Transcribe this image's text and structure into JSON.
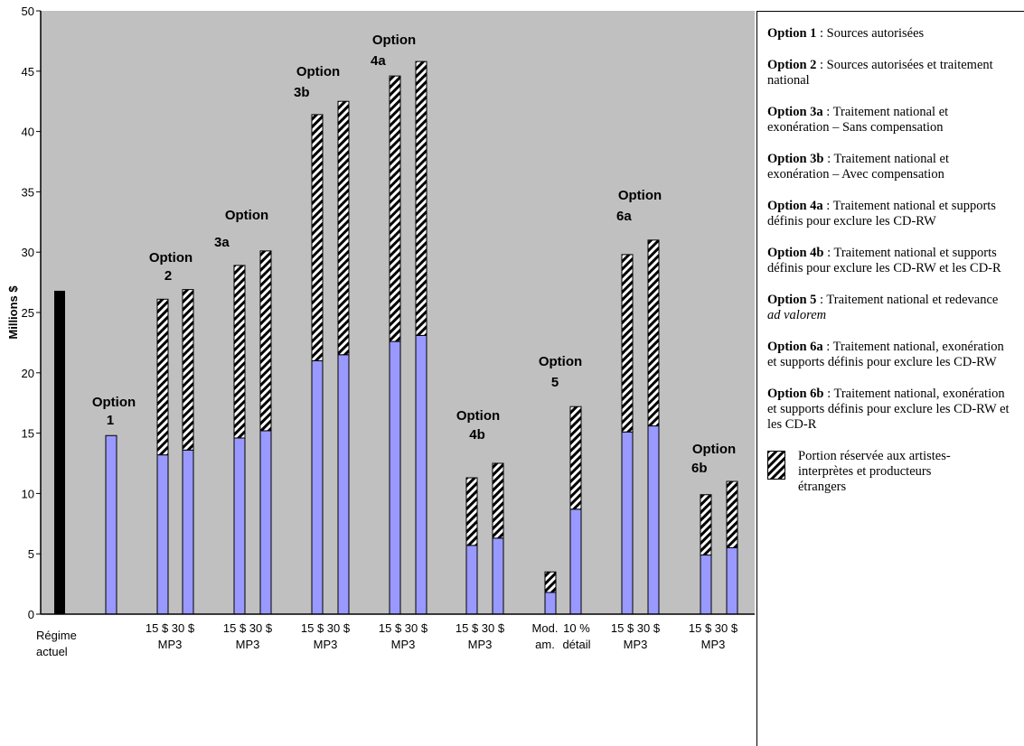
{
  "chart_data": {
    "type": "bar",
    "stacked": true,
    "ylabel": "Millions $",
    "ylim": [
      0,
      50
    ],
    "yticks": [
      0,
      5,
      10,
      15,
      20,
      25,
      30,
      35,
      40,
      45,
      50
    ],
    "grid": false,
    "background_color": "#c0c0c0",
    "colors": {
      "regime": "#000000",
      "base": "#9999ff",
      "hatch": "striped black/white"
    },
    "x_labels": [
      {
        "lines": [
          "Régime",
          "actuel"
        ]
      },
      {
        "lines": [
          "15 $",
          "30 $"
        ]
      },
      {
        "lines": [
          "15 $",
          "30 $"
        ]
      },
      {
        "lines": [
          "15 $",
          "30 $"
        ]
      },
      {
        "lines": [
          "15 $",
          "30 $"
        ]
      },
      {
        "lines": [
          "15 $",
          "30 $"
        ]
      },
      {
        "lines": [
          "Mod.",
          "am."
        ]
      },
      {
        "lines": [
          "10 %",
          "détail"
        ]
      },
      {
        "lines": [
          "15 $",
          "30 $"
        ]
      },
      {
        "lines": [
          "15 $",
          "30 $"
        ]
      }
    ],
    "group_sublabel": "MP3",
    "option_labels": [
      {
        "lines": [
          "Option",
          "1"
        ]
      },
      {
        "lines": [
          "Option",
          "2"
        ]
      },
      {
        "lines": [
          "Option",
          "3a"
        ]
      },
      {
        "lines": [
          "Option",
          "3b"
        ]
      },
      {
        "lines": [
          "Option",
          "4a"
        ]
      },
      {
        "lines": [
          "Option",
          "4b"
        ]
      },
      {
        "lines": [
          "Option",
          "5"
        ]
      },
      {
        "lines": [
          "Option",
          "6a"
        ]
      },
      {
        "lines": [
          "Option",
          "6b"
        ]
      }
    ],
    "bars": [
      {
        "group": "Régime actuel",
        "category": "Régime actuel",
        "base": 26.8,
        "foreign": 0,
        "style": "regime"
      },
      {
        "group": "Option 1",
        "category": "",
        "base": 14.8,
        "foreign": 0
      },
      {
        "group": "Option 2",
        "category": "15 $ MP3",
        "base": 13.2,
        "foreign": 12.9
      },
      {
        "group": "Option 2",
        "category": "30 $ MP3",
        "base": 13.6,
        "foreign": 13.3
      },
      {
        "group": "Option 3a",
        "category": "15 $ MP3",
        "base": 14.6,
        "foreign": 14.3
      },
      {
        "group": "Option 3a",
        "category": "30 $ MP3",
        "base": 15.2,
        "foreign": 14.9
      },
      {
        "group": "Option 3b",
        "category": "15 $ MP3",
        "base": 21.0,
        "foreign": 20.4
      },
      {
        "group": "Option 3b",
        "category": "30 $ MP3",
        "base": 21.5,
        "foreign": 21.0
      },
      {
        "group": "Option 4a",
        "category": "15 $ MP3",
        "base": 22.6,
        "foreign": 22.0
      },
      {
        "group": "Option 4a",
        "category": "30 $ MP3",
        "base": 23.1,
        "foreign": 22.7
      },
      {
        "group": "Option 4b",
        "category": "15 $ MP3",
        "base": 5.7,
        "foreign": 5.6
      },
      {
        "group": "Option 4b",
        "category": "30 $ MP3",
        "base": 6.3,
        "foreign": 6.2
      },
      {
        "group": "Option 5",
        "category": "Mod. am.",
        "base": 1.8,
        "foreign": 1.7
      },
      {
        "group": "Option 5",
        "category": "10 % détail",
        "base": 8.7,
        "foreign": 8.5
      },
      {
        "group": "Option 6a",
        "category": "15 $ MP3",
        "base": 15.1,
        "foreign": 14.7
      },
      {
        "group": "Option 6a",
        "category": "30 $ MP3",
        "base": 15.6,
        "foreign": 15.4
      },
      {
        "group": "Option 6b",
        "category": "15 $ MP3",
        "base": 4.9,
        "foreign": 5.0
      },
      {
        "group": "Option 6b",
        "category": "30 $ MP3",
        "base": 5.5,
        "foreign": 5.5
      }
    ],
    "legend_placement": "right",
    "legend": {
      "items": [
        {
          "name": "Option 1",
          "text": " : Sources autorisées"
        },
        {
          "name": "Option 2",
          "text": " : Sources autorisées et traitement national"
        },
        {
          "name": "Option 3a",
          "text": " : Traitement national et exonération – Sans compensation"
        },
        {
          "name": "Option 3b",
          "text": " :  Traitement national et exonération – Avec compensation"
        },
        {
          "name": "Option 4a",
          "text": " : Traitement national et supports définis pour exclure les CD-RW"
        },
        {
          "name": "Option 4b",
          "text": " :  Traitement national et supports définis pour exclure les CD-RW et les CD-R"
        },
        {
          "name": "Option 5",
          "text": " :  Traitement national et redevance ",
          "italic": "ad valorem"
        },
        {
          "name": "Option 6a",
          "text": " : Traitement national, exonération et supports définis pour exclure les CD-RW"
        },
        {
          "name": "Option 6b",
          "text": " :  Traitement national, exonération et supports définis pour exclure les CD-RW et les CD-R"
        }
      ],
      "hatch_label": "Portion réservée aux artistes-interprètes et producteurs étrangers"
    }
  }
}
